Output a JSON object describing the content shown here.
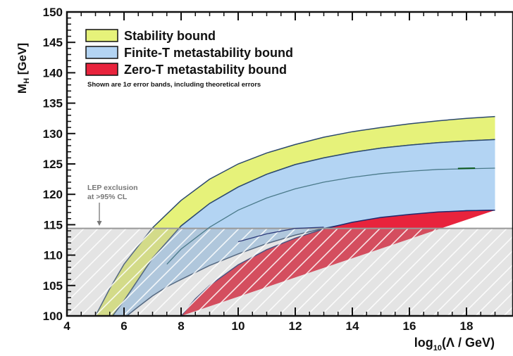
{
  "chart_data": {
    "type": "area",
    "xlabel": "log10(Λ / GeV)",
    "xlabel_parts": {
      "prefix": "log",
      "sub": "10",
      "suffix": "(Λ / GeV)"
    },
    "ylabel": "MH [GeV]",
    "ylabel_parts": {
      "main": "M",
      "sub": "H",
      "suffix": " [GeV]"
    },
    "xlim": [
      4,
      19
    ],
    "ylim": [
      100,
      150
    ],
    "x_ticks": [
      4,
      6,
      8,
      10,
      12,
      14,
      16,
      18
    ],
    "y_ticks": [
      100,
      105,
      110,
      115,
      120,
      125,
      130,
      135,
      140,
      145,
      150
    ],
    "grid": false,
    "legend_position": "top-left",
    "legend_note": "Shown are 1σ error bands, including theoretical errors",
    "series": [
      {
        "name": "Stability bound",
        "color": "#e6f27a",
        "upper": [
          [
            5.0,
            100
          ],
          [
            5.5,
            104.5
          ],
          [
            6.0,
            108.5
          ],
          [
            7.0,
            114.5
          ],
          [
            8.0,
            119
          ],
          [
            9.0,
            122.5
          ],
          [
            10.0,
            125
          ],
          [
            11.0,
            126.8
          ],
          [
            12.0,
            128.2
          ],
          [
            13.0,
            129.4
          ],
          [
            14.0,
            130.3
          ],
          [
            15.0,
            131
          ],
          [
            16.0,
            131.6
          ],
          [
            17.0,
            132.1
          ],
          [
            18.0,
            132.5
          ],
          [
            19.0,
            132.8
          ]
        ],
        "lower": [
          [
            5.6,
            100
          ],
          [
            6.0,
            102.5
          ],
          [
            7.0,
            109.5
          ],
          [
            8.0,
            114.8
          ],
          [
            9.0,
            118.5
          ],
          [
            10.0,
            121.2
          ],
          [
            11.0,
            123.3
          ],
          [
            12.0,
            124.9
          ],
          [
            13.0,
            126
          ],
          [
            14.0,
            126.9
          ],
          [
            15.0,
            127.6
          ],
          [
            16.0,
            128.1
          ],
          [
            17.0,
            128.5
          ],
          [
            18.0,
            128.8
          ],
          [
            19.0,
            129
          ]
        ]
      },
      {
        "name": "Finite-T metastability bound",
        "color": "#b3d4f3",
        "upper": [
          [
            5.6,
            100
          ],
          [
            6.0,
            102.5
          ],
          [
            7.0,
            109.5
          ],
          [
            8.0,
            114.8
          ],
          [
            9.0,
            118.5
          ],
          [
            10.0,
            121.2
          ],
          [
            11.0,
            123.3
          ],
          [
            12.0,
            124.9
          ],
          [
            13.0,
            126
          ],
          [
            14.0,
            126.9
          ],
          [
            15.0,
            127.6
          ],
          [
            16.0,
            128.1
          ],
          [
            17.0,
            128.5
          ],
          [
            18.0,
            128.8
          ],
          [
            19.0,
            129
          ]
        ],
        "lower": [
          [
            6.1,
            100
          ],
          [
            6.5,
            101.5
          ],
          [
            7.0,
            103.3
          ],
          [
            7.5,
            104.8
          ],
          [
            8.0,
            106
          ],
          [
            9.0,
            108.3
          ],
          [
            10.0,
            110.2
          ],
          [
            11.0,
            111.9
          ],
          [
            12.0,
            113.3
          ],
          [
            13.0,
            114.4
          ],
          [
            14.0,
            115.3
          ],
          [
            15.0,
            116
          ],
          [
            16.0,
            116.6
          ],
          [
            17.0,
            117
          ],
          [
            18.0,
            117.3
          ],
          [
            19.0,
            117.4
          ]
        ]
      },
      {
        "name": "Zero-T metastability bound",
        "color": "#e8233c",
        "upper": [
          [
            8.0,
            100
          ],
          [
            8.5,
            102.8
          ],
          [
            9.0,
            105
          ],
          [
            10.0,
            108.4
          ],
          [
            11.0,
            110.9
          ],
          [
            12.0,
            112.8
          ],
          [
            13.0,
            114.3
          ],
          [
            14.0,
            115.4
          ],
          [
            15.0,
            116.2
          ],
          [
            16.0,
            116.7
          ],
          [
            17.0,
            117.1
          ],
          [
            18.0,
            117.3
          ],
          [
            19.0,
            117.4
          ]
        ],
        "lower": [
          [
            19.0,
            100
          ],
          [
            8.0,
            100
          ]
        ]
      }
    ],
    "reference_lines": [
      {
        "name": "LEP exclusion",
        "y": 114.4,
        "color": "#999999"
      },
      {
        "name": "Finite-T central",
        "points": [
          [
            7.5,
            108.5
          ],
          [
            8.0,
            111
          ],
          [
            9.0,
            114.6
          ],
          [
            10.0,
            117.4
          ],
          [
            11.0,
            119.4
          ],
          [
            12.0,
            120.9
          ],
          [
            13.0,
            122
          ],
          [
            14.0,
            122.8
          ],
          [
            15.0,
            123.4
          ],
          [
            16.0,
            123.8
          ],
          [
            17.0,
            124.1
          ],
          [
            18.0,
            124.2
          ],
          [
            19.0,
            124.3
          ]
        ],
        "color": "#4a7a8a"
      },
      {
        "name": "Zero-T central",
        "points": [
          [
            10.0,
            112.2
          ],
          [
            11.0,
            113.5
          ],
          [
            12.0,
            114.4
          ],
          [
            13.0,
            114.6
          ]
        ],
        "color": "#2c3a7a"
      }
    ],
    "annotations": [
      {
        "text": "LEP exclusion",
        "x": 5.1,
        "y": 121.5
      },
      {
        "text": "at >95% CL",
        "x": 5.1,
        "y": 120.3
      }
    ]
  }
}
